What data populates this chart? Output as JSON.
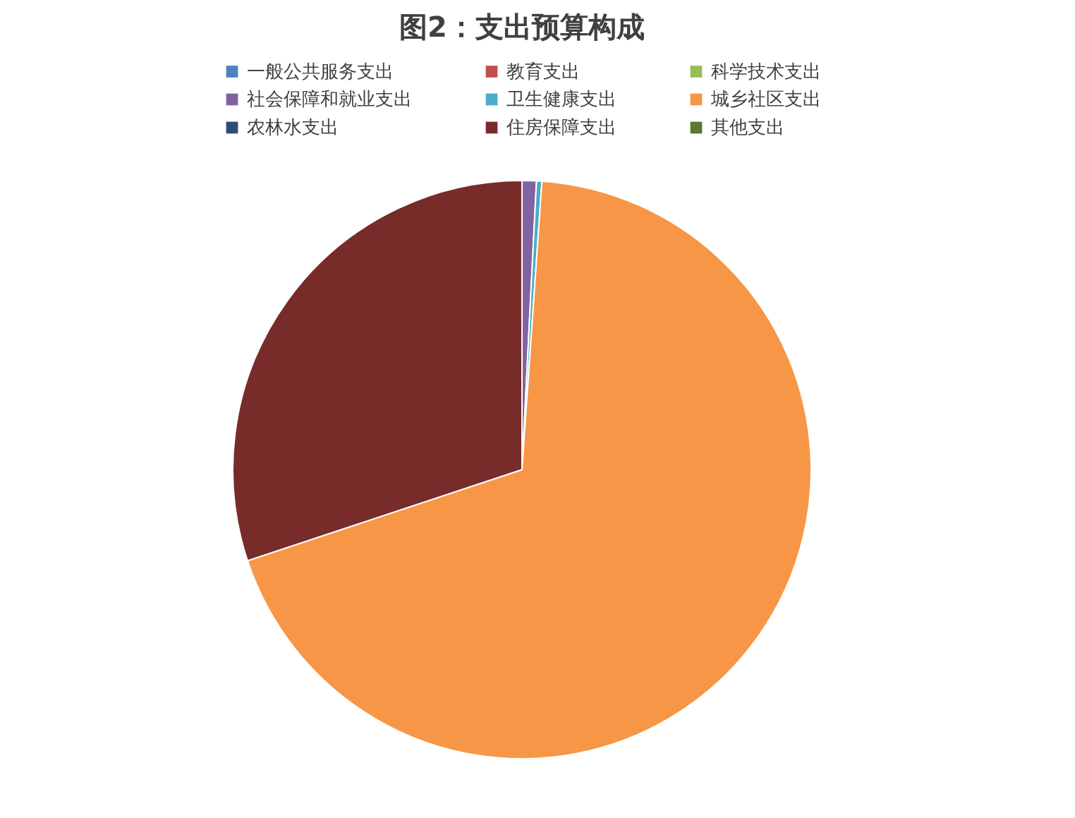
{
  "chart_data": {
    "type": "pie",
    "title": "图2：支出预算构成",
    "categories": [
      "一般公共服务支出",
      "教育支出",
      "科学技术支出",
      "社会保障和就业支出",
      "卫生健康支出",
      "城乡社区支出",
      "农林水支出",
      "住房保障支出",
      "其他支出"
    ],
    "values": [
      0,
      0,
      0,
      0.8,
      0.3,
      68.8,
      0,
      30.1,
      0
    ],
    "colors": [
      "#4f81bd",
      "#c0504d",
      "#9bbb59",
      "#8064a2",
      "#4bacc6",
      "#f79646",
      "#2c4d75",
      "#772c2a",
      "#5f7530"
    ],
    "legend": "top"
  }
}
